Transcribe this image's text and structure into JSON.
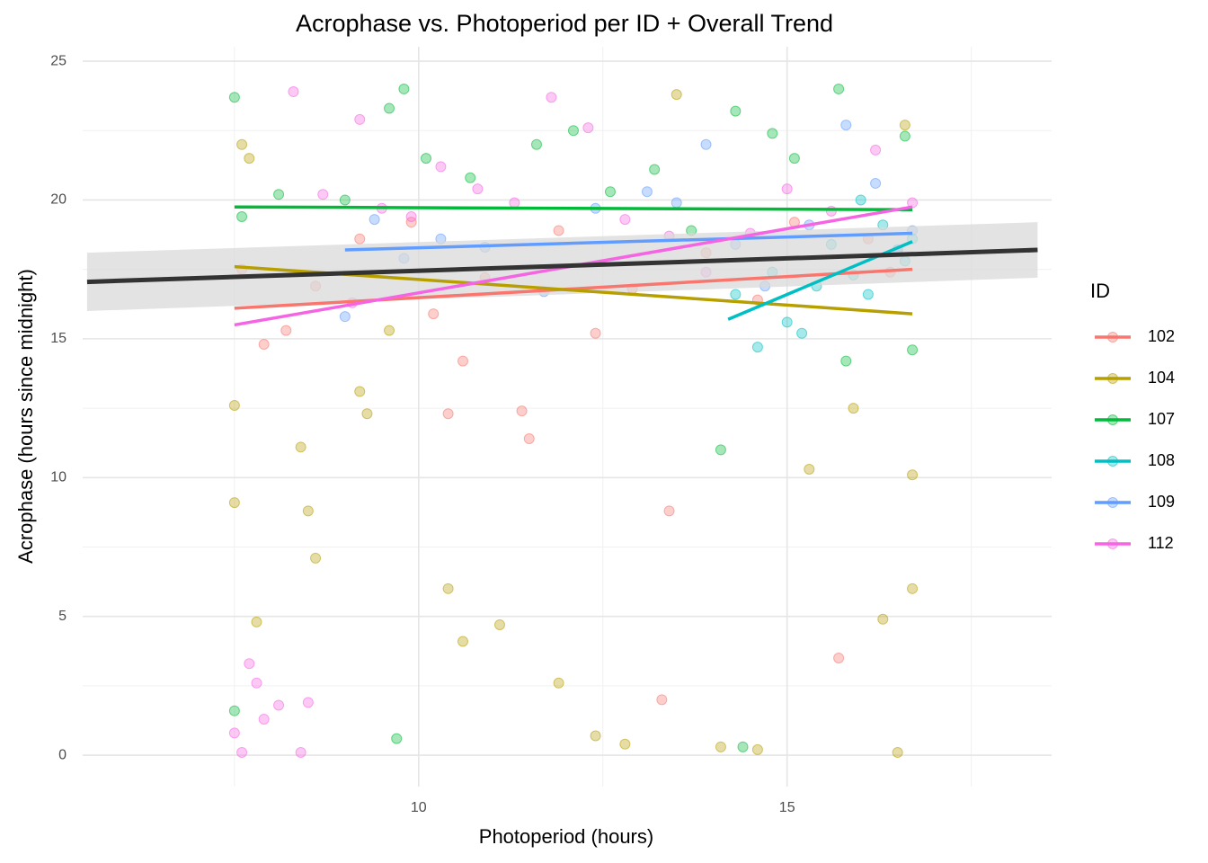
{
  "chart_data": {
    "type": "scatter",
    "title": "Acrophase vs. Photoperiod per ID + Overall Trend",
    "x_label": "Photoperiod (hours)",
    "y_label": "Acrophase (hours since midnight)",
    "legend_title": "ID",
    "legend_position": "right",
    "grid": true,
    "xlim": [
      5.44,
      18.59
    ],
    "ylim": [
      -1.13,
      25.52
    ],
    "xticks": [
      10,
      15
    ],
    "yticks": [
      0,
      5,
      10,
      15,
      20,
      25
    ],
    "minor_xticks": [
      7.5,
      12.5,
      17.5
    ],
    "minor_yticks": [
      2.5,
      7.5,
      12.5,
      17.5,
      22.5
    ],
    "series": [
      {
        "name": "102",
        "color": "#F8766D",
        "x": [
          7.6,
          7.9,
          8.2,
          8.6,
          9.2,
          9.9,
          10.2,
          10.6,
          10.9,
          11.4,
          11.9,
          12.4,
          12.9,
          13.3,
          13.4,
          13.9,
          14.6,
          15.1,
          15.7,
          16.1,
          16.4,
          10.4,
          11.5
        ],
        "values": [
          17.5,
          14.8,
          15.3,
          16.9,
          18.6,
          19.2,
          15.9,
          14.2,
          17.2,
          12.4,
          18.9,
          15.2,
          16.8,
          2.0,
          8.8,
          18.1,
          16.4,
          19.2,
          3.5,
          18.6,
          17.4,
          12.3,
          11.4
        ],
        "fit_x": [
          7.5,
          16.7
        ],
        "fit_values": [
          16.1,
          17.5
        ]
      },
      {
        "name": "104",
        "color": "#B79F00",
        "x": [
          7.5,
          7.5,
          7.6,
          7.8,
          8.4,
          8.5,
          8.6,
          9.2,
          9.3,
          10.4,
          10.6,
          11.1,
          11.9,
          12.4,
          12.8,
          13.5,
          14.1,
          14.6,
          15.3,
          15.9,
          16.3,
          16.5,
          16.7,
          16.7,
          7.7,
          9.6,
          16.6
        ],
        "values": [
          9.1,
          12.6,
          22.0,
          4.8,
          11.1,
          8.8,
          7.1,
          13.1,
          12.3,
          6.0,
          4.1,
          4.7,
          2.6,
          0.7,
          0.4,
          23.8,
          0.3,
          0.2,
          10.3,
          12.5,
          4.9,
          0.1,
          6.0,
          10.1,
          21.5,
          15.3,
          22.7
        ],
        "fit_x": [
          7.5,
          16.7
        ],
        "fit_values": [
          17.6,
          15.9
        ]
      },
      {
        "name": "107",
        "color": "#00BA38",
        "x": [
          7.5,
          7.5,
          7.6,
          8.1,
          9.0,
          9.6,
          9.8,
          10.1,
          10.7,
          11.6,
          12.1,
          12.6,
          13.2,
          13.7,
          14.1,
          14.3,
          14.8,
          15.1,
          15.7,
          15.8,
          16.6,
          16.7,
          9.7,
          14.4
        ],
        "values": [
          23.7,
          1.6,
          19.4,
          20.2,
          20.0,
          23.3,
          24.0,
          21.5,
          20.8,
          22.0,
          22.5,
          20.3,
          21.1,
          18.9,
          11.0,
          23.2,
          22.4,
          21.5,
          24.0,
          14.2,
          22.3,
          14.6,
          0.6,
          0.3
        ],
        "fit_x": [
          7.5,
          16.7
        ],
        "fit_values": [
          19.75,
          19.65
        ]
      },
      {
        "name": "108",
        "color": "#00BFC4",
        "x": [
          14.3,
          14.6,
          14.8,
          15.0,
          15.2,
          15.6,
          15.9,
          16.1,
          16.3,
          16.5,
          16.6,
          16.7,
          15.4,
          16.0
        ],
        "values": [
          16.6,
          14.7,
          17.4,
          15.6,
          15.2,
          18.4,
          17.3,
          16.6,
          19.1,
          18.2,
          17.8,
          18.6,
          16.9,
          20.0
        ],
        "fit_x": [
          14.2,
          16.7
        ],
        "fit_values": [
          15.7,
          18.5
        ]
      },
      {
        "name": "109",
        "color": "#619CFF",
        "x": [
          9.0,
          9.4,
          9.8,
          10.3,
          10.9,
          11.7,
          12.4,
          13.1,
          13.5,
          13.9,
          14.3,
          14.7,
          15.3,
          15.8,
          16.2,
          16.5,
          16.7
        ],
        "values": [
          15.8,
          19.3,
          17.9,
          18.6,
          18.3,
          16.7,
          19.7,
          20.3,
          19.9,
          22.0,
          18.4,
          16.9,
          19.1,
          22.7,
          20.6,
          18.2,
          18.9
        ],
        "fit_x": [
          9.0,
          16.7
        ],
        "fit_values": [
          18.2,
          18.8
        ]
      },
      {
        "name": "112",
        "color": "#F564E3",
        "x": [
          7.5,
          7.6,
          7.7,
          7.8,
          7.9,
          8.1,
          8.3,
          8.5,
          8.7,
          9.2,
          9.5,
          9.9,
          10.3,
          10.8,
          11.3,
          11.8,
          12.3,
          12.8,
          13.4,
          13.9,
          14.5,
          15.0,
          15.6,
          16.2,
          16.7,
          8.4,
          9.1
        ],
        "values": [
          0.8,
          0.1,
          3.3,
          2.6,
          1.3,
          1.8,
          23.9,
          1.9,
          20.2,
          22.9,
          19.7,
          19.4,
          21.2,
          20.4,
          19.9,
          23.7,
          22.6,
          19.3,
          18.7,
          17.4,
          18.8,
          20.4,
          19.6,
          21.8,
          19.9,
          0.1,
          16.3
        ],
        "fit_x": [
          7.5,
          16.7
        ],
        "fit_values": [
          15.5,
          19.75
        ]
      }
    ],
    "trend": {
      "color": "#333333",
      "band_color": "#d9d9d9",
      "x": [
        5.5,
        18.4
      ],
      "values": [
        17.05,
        18.2
      ],
      "lower": [
        16.0,
        17.2
      ],
      "upper": [
        18.1,
        19.2
      ]
    }
  }
}
